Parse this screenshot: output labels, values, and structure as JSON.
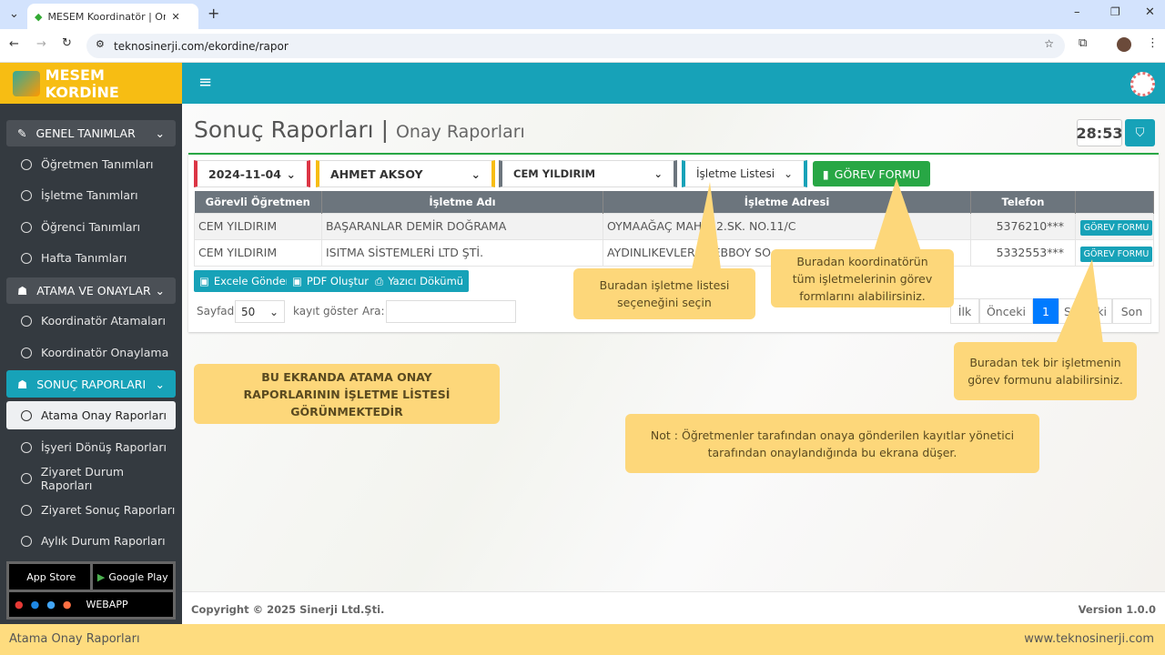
{
  "browser": {
    "tab_title": "MESEM Koordinatör | Onay Rap",
    "url": "teknosinerji.com/ekordine/rapor"
  },
  "app": {
    "logo": "MESEM KORDİNE"
  },
  "sidebar": {
    "groups": [
      {
        "label": "GENEL TANIMLAR",
        "items": [
          "Öğretmen Tanımları",
          "İşletme Tanımları",
          "Öğrenci Tanımları",
          "Hafta Tanımları"
        ]
      },
      {
        "label": "ATAMA VE ONAYLAR",
        "items": [
          "Koordinatör Atamaları",
          "Koordinatör Onaylama"
        ]
      },
      {
        "label": "SONUÇ RAPORLARI",
        "items": [
          "Atama Onay Raporları",
          "İşyeri Dönüş Raporları",
          "Ziyaret Durum Raporları",
          "Ziyaret Sonuç Raporları",
          "Aylık Durum Raporları"
        ]
      }
    ],
    "active_item": "Atama Onay Raporları",
    "stores": {
      "appstore": "App Store",
      "googleplay": "Google Play",
      "webapp": "WEBAPP"
    }
  },
  "page": {
    "title": "Sonuç Raporları",
    "subtitle": "Onay Raporları",
    "timer": "28:53"
  },
  "filters": {
    "date": "2024-11-04",
    "coordinator": "AHMET AKSOY",
    "teacher": "CEM YILDIRIM",
    "list_type": "İşletme Listesi",
    "gorev_button": "GÖREV FORMU"
  },
  "table": {
    "headers": [
      "Görevli Öğretmen",
      "İşletme Adı",
      "İşletme Adresi",
      "Telefon",
      ""
    ],
    "rows": [
      {
        "teacher": "CEM YILDIRIM",
        "name": "BAŞARANLAR DEMİR DOĞRAMA",
        "address": "OYMAAĞAÇ MAH. 12.SK. NO.11/C",
        "phone": "5376210***",
        "action": "GÖREV FORMU"
      },
      {
        "teacher": "CEM YILDIRIM",
        "name": "ISITMA SİSTEMLERİ LTD ŞTİ.",
        "address": "AYDINLIKEVLER ... EBBOY SO...",
        "phone": "5332553***",
        "action": "GÖREV FORMU"
      }
    ]
  },
  "export": {
    "excel": "Excele Gönder",
    "pdf": "PDF Oluştur",
    "print": "Yazıcı Dökümü"
  },
  "length": {
    "prefix": "Sayfada",
    "value": "50",
    "suffix": "kayıt göster",
    "search_label": "Ara:",
    "search_value": ""
  },
  "pagination": {
    "first": "İlk",
    "prev": "Önceki",
    "current": "1",
    "next": "Sonraki",
    "last": "Son"
  },
  "callouts": {
    "list": "Buradan işletme listesi seçeneğini seçin",
    "all": "Buradan koordinatörün tüm işletmelerinin görev formlarını alabilirsiniz.",
    "single": "Buradan tek bir işletmenin görev formunu alabilirsiniz.",
    "screen": "BU EKRANDA ATAMA ONAY RAPORLARININ İŞLETME LİSTESİ GÖRÜNMEKTEDİR",
    "note": "Not : Öğretmenler tarafından onaya gönderilen kayıtlar yönetici tarafından onaylandığında bu ekrana düşer."
  },
  "footer": {
    "copyright": "Copyright © 2025 Sinerji Ltd.Şti.",
    "version": "Version 1.0.0"
  },
  "status": {
    "left": "Atama Onay Raporları",
    "right": "www.teknosinerji.com"
  },
  "colors": {
    "teal": "#17a2b8",
    "yellow": "#f7bd13",
    "green": "#28a745",
    "sidebar": "#343a40",
    "callout": "#fdd77a"
  }
}
